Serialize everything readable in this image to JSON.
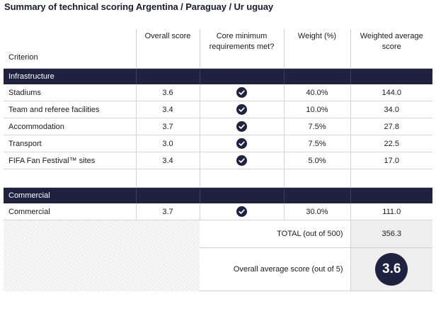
{
  "title": "Summary of technical scoring Argentina / Paraguay / Ur uguay",
  "headers": {
    "criterion": "Criterion",
    "overall_score": "Overall score",
    "core_minimum": "Core minimum requirements met?",
    "weight": "Weight (%)",
    "weighted_average": "Weighted average score"
  },
  "sections": [
    {
      "name": "Infrastructure",
      "rows": [
        {
          "criterion": "Stadiums",
          "score": "3.6",
          "met": "check-icon",
          "weight": "40.0%",
          "weighted": "144.0"
        },
        {
          "criterion": "Team and referee facilities",
          "score": "3.4",
          "met": "check-icon",
          "weight": "10.0%",
          "weighted": "34.0"
        },
        {
          "criterion": "Accommodation",
          "score": "3.7",
          "met": "check-icon",
          "weight": "7.5%",
          "weighted": "27.8"
        },
        {
          "criterion": "Transport",
          "score": "3.0",
          "met": "check-icon",
          "weight": "7.5%",
          "weighted": "22.5"
        },
        {
          "criterion": "FIFA Fan Festival™ sites",
          "score": "3.4",
          "met": "check-icon",
          "weight": "5.0%",
          "weighted": "17.0"
        }
      ]
    },
    {
      "name": "Commercial",
      "rows": [
        {
          "criterion": "Commercial",
          "score": "3.7",
          "met": "check-icon",
          "weight": "30.0%",
          "weighted": "111.0"
        }
      ]
    }
  ],
  "total": {
    "label": "TOTAL (out of 500)",
    "value": "356.3"
  },
  "overall": {
    "label": "Overall average score (out of 5)",
    "value": "3.6"
  },
  "colors": {
    "navy": "#1e2240",
    "grey_cell": "#eeeeee",
    "rule": "#d4d4d4"
  }
}
